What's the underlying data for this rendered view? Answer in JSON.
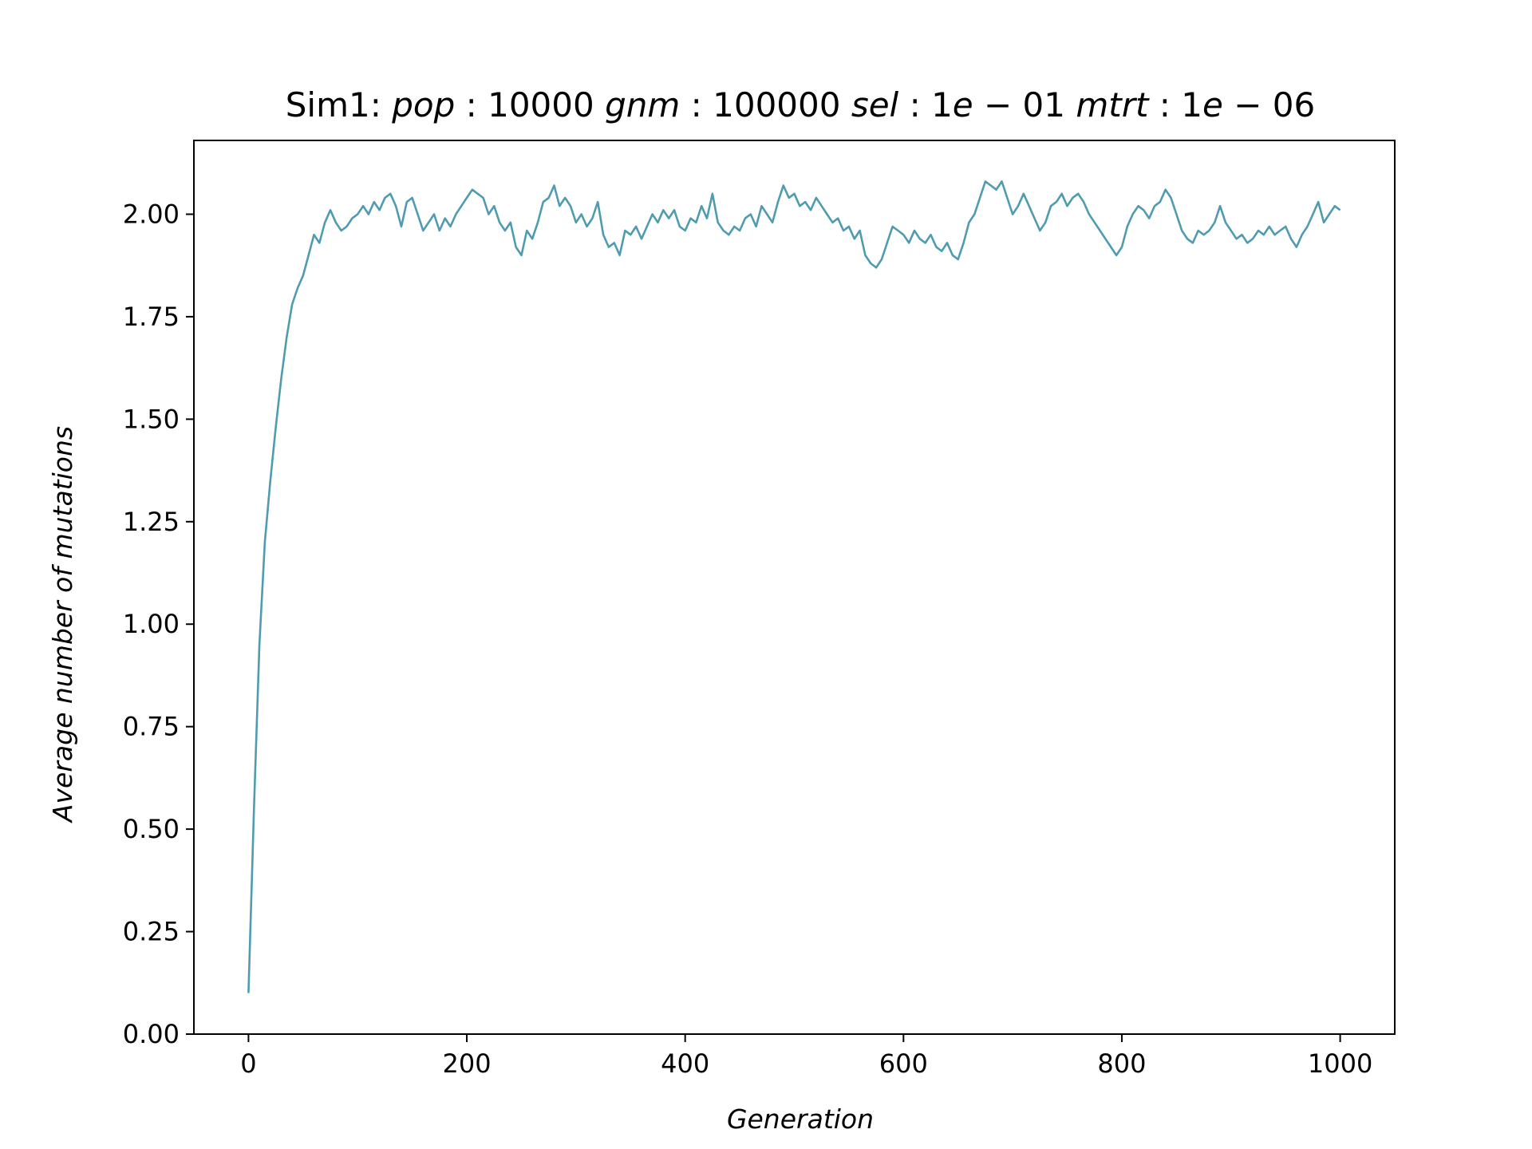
{
  "chart_data": {
    "type": "line",
    "title_parts": [
      {
        "text": "Sim1: ",
        "style": "normal"
      },
      {
        "text": "pop",
        "style": "italic"
      },
      {
        "text": " : 10000 ",
        "style": "normal"
      },
      {
        "text": "gnm",
        "style": "italic"
      },
      {
        "text": " : 100000 ",
        "style": "normal"
      },
      {
        "text": "sel",
        "style": "italic"
      },
      {
        "text": " : 1",
        "style": "normal"
      },
      {
        "text": "e",
        "style": "italic"
      },
      {
        "text": " − 01 ",
        "style": "normal"
      },
      {
        "text": "mtrt",
        "style": "italic"
      },
      {
        "text": " : 1",
        "style": "normal"
      },
      {
        "text": "e",
        "style": "italic"
      },
      {
        "text": " − 06",
        "style": "normal"
      }
    ],
    "xlabel": "Generation",
    "ylabel": "Average number of mutations",
    "xlim": [
      -50,
      1050
    ],
    "ylim": [
      0,
      2.18
    ],
    "xticks": [
      0,
      200,
      400,
      600,
      800,
      1000
    ],
    "xtick_labels": [
      "0",
      "200",
      "400",
      "600",
      "800",
      "1000"
    ],
    "yticks": [
      0,
      0.25,
      0.5,
      0.75,
      1.0,
      1.25,
      1.5,
      1.75,
      2.0
    ],
    "ytick_labels": [
      "0.00",
      "0.25",
      "0.50",
      "0.75",
      "1.00",
      "1.25",
      "1.50",
      "1.75",
      "2.00"
    ],
    "grid": false,
    "series": [
      {
        "color": "#4f9bb0",
        "x": [
          0,
          5,
          10,
          15,
          20,
          25,
          30,
          35,
          40,
          45,
          50,
          55,
          60,
          65,
          70,
          75,
          80,
          85,
          90,
          95,
          100,
          105,
          110,
          115,
          120,
          125,
          130,
          135,
          140,
          145,
          150,
          155,
          160,
          165,
          170,
          175,
          180,
          185,
          190,
          195,
          200,
          205,
          210,
          215,
          220,
          225,
          230,
          235,
          240,
          245,
          250,
          255,
          260,
          265,
          270,
          275,
          280,
          285,
          290,
          295,
          300,
          305,
          310,
          315,
          320,
          325,
          330,
          335,
          340,
          345,
          350,
          355,
          360,
          365,
          370,
          375,
          380,
          385,
          390,
          395,
          400,
          405,
          410,
          415,
          420,
          425,
          430,
          435,
          440,
          445,
          450,
          455,
          460,
          465,
          470,
          475,
          480,
          485,
          490,
          495,
          500,
          505,
          510,
          515,
          520,
          525,
          530,
          535,
          540,
          545,
          550,
          555,
          560,
          565,
          570,
          575,
          580,
          585,
          590,
          595,
          600,
          605,
          610,
          615,
          620,
          625,
          630,
          635,
          640,
          645,
          650,
          655,
          660,
          665,
          670,
          675,
          680,
          685,
          690,
          695,
          700,
          705,
          710,
          715,
          720,
          725,
          730,
          735,
          740,
          745,
          750,
          755,
          760,
          765,
          770,
          775,
          780,
          785,
          790,
          795,
          800,
          805,
          810,
          815,
          820,
          825,
          830,
          835,
          840,
          845,
          850,
          855,
          860,
          865,
          870,
          875,
          880,
          885,
          890,
          895,
          900,
          905,
          910,
          915,
          920,
          925,
          930,
          935,
          940,
          945,
          950,
          955,
          960,
          965,
          970,
          975,
          980,
          985,
          990,
          995,
          1000
        ],
        "y": [
          0.1,
          0.55,
          0.95,
          1.2,
          1.35,
          1.48,
          1.6,
          1.7,
          1.78,
          1.82,
          1.85,
          1.9,
          1.95,
          1.93,
          1.98,
          2.01,
          1.98,
          1.96,
          1.97,
          1.99,
          2.0,
          2.02,
          2.0,
          2.03,
          2.01,
          2.04,
          2.05,
          2.02,
          1.97,
          2.03,
          2.04,
          2.0,
          1.96,
          1.98,
          2.0,
          1.96,
          1.99,
          1.97,
          2.0,
          2.02,
          2.04,
          2.06,
          2.05,
          2.04,
          2.0,
          2.02,
          1.98,
          1.96,
          1.98,
          1.92,
          1.9,
          1.96,
          1.94,
          1.98,
          2.03,
          2.04,
          2.07,
          2.02,
          2.04,
          2.02,
          1.98,
          2.0,
          1.97,
          1.99,
          2.03,
          1.95,
          1.92,
          1.93,
          1.9,
          1.96,
          1.95,
          1.97,
          1.94,
          1.97,
          2.0,
          1.98,
          2.01,
          1.99,
          2.01,
          1.97,
          1.96,
          1.99,
          1.98,
          2.02,
          1.99,
          2.05,
          1.98,
          1.96,
          1.95,
          1.97,
          1.96,
          1.99,
          2.0,
          1.97,
          2.02,
          2.0,
          1.98,
          2.03,
          2.07,
          2.04,
          2.05,
          2.02,
          2.03,
          2.01,
          2.04,
          2.02,
          2.0,
          1.98,
          1.99,
          1.96,
          1.97,
          1.94,
          1.96,
          1.9,
          1.88,
          1.87,
          1.89,
          1.93,
          1.97,
          1.96,
          1.95,
          1.93,
          1.96,
          1.94,
          1.93,
          1.95,
          1.92,
          1.91,
          1.93,
          1.9,
          1.89,
          1.93,
          1.98,
          2.0,
          2.04,
          2.08,
          2.07,
          2.06,
          2.08,
          2.04,
          2.0,
          2.02,
          2.05,
          2.02,
          1.99,
          1.96,
          1.98,
          2.02,
          2.03,
          2.05,
          2.02,
          2.04,
          2.05,
          2.03,
          2.0,
          1.98,
          1.96,
          1.94,
          1.92,
          1.9,
          1.92,
          1.97,
          2.0,
          2.02,
          2.01,
          1.99,
          2.02,
          2.03,
          2.06,
          2.04,
          2.0,
          1.96,
          1.94,
          1.93,
          1.96,
          1.95,
          1.96,
          1.98,
          2.02,
          1.98,
          1.96,
          1.94,
          1.95,
          1.93,
          1.94,
          1.96,
          1.95,
          1.97,
          1.95,
          1.96,
          1.97,
          1.94,
          1.92,
          1.95,
          1.97,
          2.0,
          2.03,
          1.98,
          2.0,
          2.02,
          2.01
        ]
      }
    ]
  }
}
